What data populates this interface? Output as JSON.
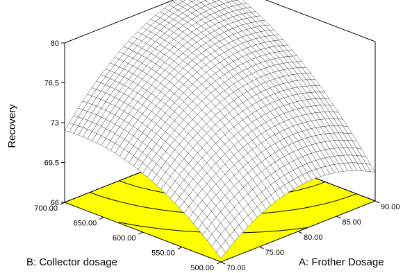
{
  "chart_data": {
    "type": "surface3d",
    "zlabel": "Recovery",
    "xlabel": "A: Frother Dosage",
    "ylabel": "B: Collector dosage",
    "z_ticks": [
      "66",
      "69.5",
      "73",
      "76.5",
      "80"
    ],
    "x_ticks": [
      "70.00",
      "75.00",
      "80.00",
      "85.00",
      "90.00"
    ],
    "y_ticks": [
      "500.00",
      "550.00",
      "600.00",
      "650.00",
      "700.00"
    ],
    "xlim": [
      70,
      90
    ],
    "ylim": [
      500,
      700
    ],
    "zlim": [
      66,
      80
    ],
    "contour_fill_color": "#ffff00",
    "corner_values": {
      "a70_b500": 66.3,
      "a90_b500": 68.5,
      "a70_b700": 72.3,
      "a90_b700": 80.0
    },
    "mesh_color": "#000000"
  }
}
